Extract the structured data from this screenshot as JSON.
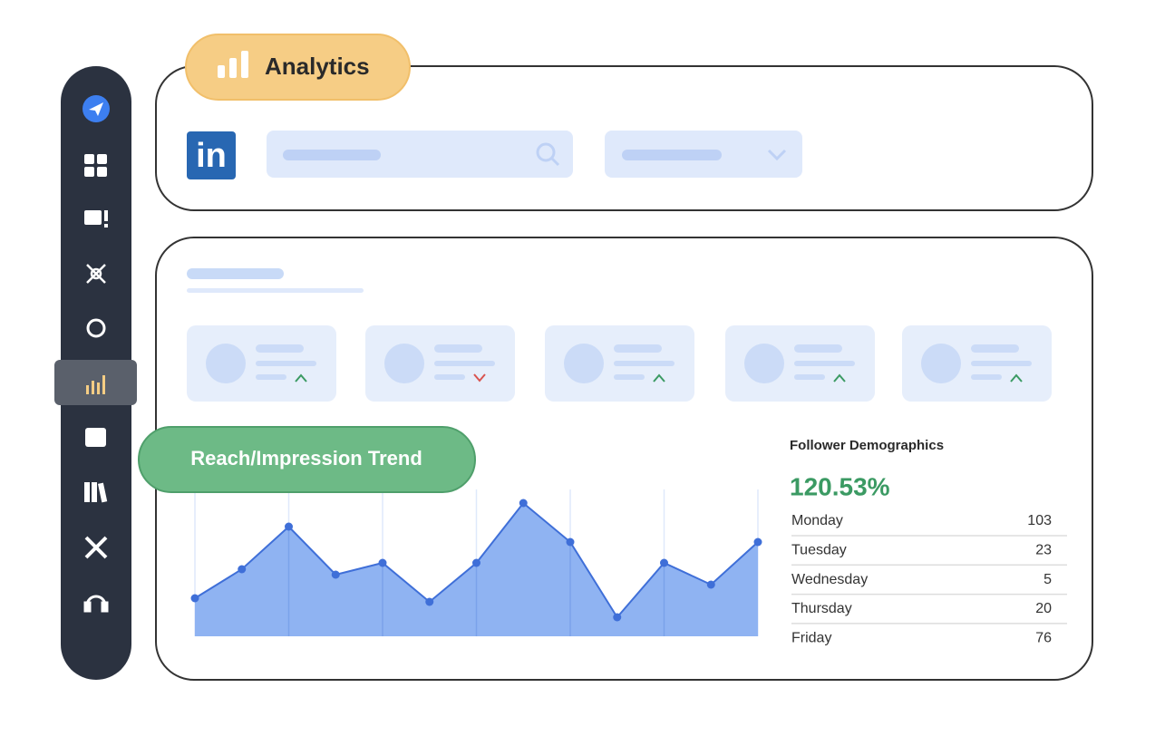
{
  "header": {
    "title": "Analytics",
    "logo": "in"
  },
  "chart_data": {
    "type": "area",
    "title": "Reach/Impression Trend",
    "color": "#8fb3f2",
    "line_color": "#3f6fd8",
    "values": [
      42,
      74,
      121,
      68,
      81,
      38,
      81,
      147,
      104,
      21,
      81,
      57,
      104
    ]
  },
  "demographics": {
    "title": "Follower Demographics",
    "total": "120.53%",
    "rows": [
      [
        "Monday",
        103
      ],
      [
        "Tuesday",
        23
      ],
      [
        "Wednesday",
        5
      ],
      [
        "Thursday",
        20
      ],
      [
        "Friday",
        76
      ]
    ]
  }
}
